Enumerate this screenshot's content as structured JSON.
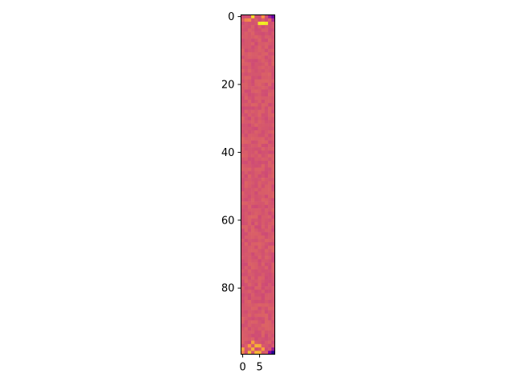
{
  "chart_data": {
    "type": "heatmap",
    "title": "",
    "xlabel": "",
    "ylabel": "",
    "rows": 100,
    "cols": 10,
    "xlim": [
      -0.5,
      9.5
    ],
    "ylim": [
      99.5,
      -0.5
    ],
    "xticks": [
      0,
      5
    ],
    "xtick_labels": [
      "0",
      "5"
    ],
    "yticks": [
      0,
      20,
      40,
      60,
      80
    ],
    "ytick_labels": [
      "0",
      "20",
      "40",
      "60",
      "80"
    ],
    "colormap": "plasma",
    "value_range": [
      0,
      1
    ],
    "typical_value": 0.55,
    "hot_cells": [
      {
        "row": 0,
        "col": 3,
        "value": 0.92
      },
      {
        "row": 0,
        "col": 6,
        "value": 0.75
      },
      {
        "row": 1,
        "col": 1,
        "value": 0.7
      },
      {
        "row": 1,
        "col": 2,
        "value": 0.72
      },
      {
        "row": 2,
        "col": 5,
        "value": 0.96
      },
      {
        "row": 2,
        "col": 6,
        "value": 0.98
      },
      {
        "row": 2,
        "col": 7,
        "value": 0.95
      },
      {
        "row": 96,
        "col": 3,
        "value": 0.78
      },
      {
        "row": 97,
        "col": 2,
        "value": 0.76
      },
      {
        "row": 97,
        "col": 4,
        "value": 0.82
      },
      {
        "row": 97,
        "col": 5,
        "value": 0.8
      },
      {
        "row": 98,
        "col": 0,
        "value": 0.8
      },
      {
        "row": 98,
        "col": 3,
        "value": 0.82
      },
      {
        "row": 98,
        "col": 6,
        "value": 0.78
      },
      {
        "row": 99,
        "col": 0,
        "value": 0.7
      },
      {
        "row": 99,
        "col": 2,
        "value": 0.86
      },
      {
        "row": 99,
        "col": 4,
        "value": 0.84
      },
      {
        "row": 99,
        "col": 5,
        "value": 0.82
      }
    ],
    "cold_cells": [
      {
        "row": 99,
        "col": 8,
        "value": 0.25
      },
      {
        "row": 99,
        "col": 9,
        "value": 0.05
      },
      {
        "row": 98,
        "col": 9,
        "value": 0.35
      },
      {
        "row": 0,
        "col": 8,
        "value": 0.35
      },
      {
        "row": 0,
        "col": 9,
        "value": 0.2
      },
      {
        "row": 1,
        "col": 9,
        "value": 0.4
      }
    ]
  }
}
